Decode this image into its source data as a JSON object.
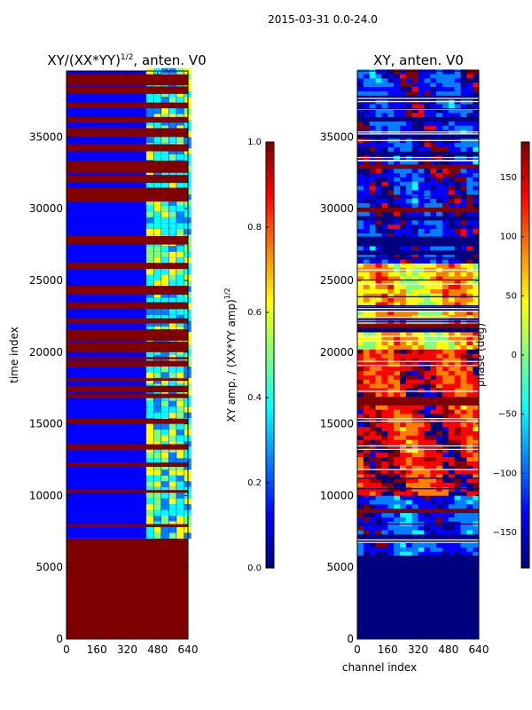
{
  "suptitle": "2015-03-31 0.0-24.0",
  "colors": {
    "saturated": "#800000",
    "background_blue": "#00008f",
    "frame": "#000000"
  },
  "colormap": [
    "#00007f",
    "#0000ff",
    "#007fff",
    "#00ffff",
    "#7fff7f",
    "#ffff00",
    "#ff7f00",
    "#ff0000",
    "#7f0000"
  ],
  "chart_data": [
    {
      "type": "heatmap",
      "title": "XY/(XX*YY)^{1/2}, anten. V0",
      "title_main": "XY/(XX*YY)",
      "title_sup": "1/2",
      "title_tail": ", anten. V0",
      "xlabel": "",
      "ylabel": "time index",
      "xlim": [
        0,
        640
      ],
      "ylim": [
        0,
        39600
      ],
      "xticks": [
        0,
        160,
        320,
        480,
        640
      ],
      "xtick_labels": [
        "0",
        "160",
        "320",
        "480",
        "640"
      ],
      "yticks": [
        0,
        5000,
        10000,
        15000,
        20000,
        25000,
        30000,
        35000
      ],
      "ytick_labels": [
        "0",
        "5000",
        "10000",
        "15000",
        "20000",
        "25000",
        "30000",
        "35000"
      ],
      "colorbar": {
        "label": "XY amp. / (XX*YY amp)^{1/2}",
        "label_main": "XY amp. / (XX*YY amp)",
        "label_sup": "1/2",
        "range": [
          0.0,
          1.0
        ],
        "ticks": [
          0.0,
          0.2,
          0.4,
          0.6,
          0.8,
          1.0
        ],
        "tick_labels": [
          "0.0",
          "0.2",
          "0.4",
          "0.6",
          "0.8",
          "1.0"
        ]
      },
      "value_bands": [
        {
          "t_start": 0,
          "t_end": 7000,
          "value": 1.0
        },
        {
          "t_start": 7000,
          "t_end": 39600,
          "value": 0.1
        }
      ],
      "saturated_rows": [
        7800,
        10200,
        12000,
        13200,
        15000,
        16800,
        17200,
        18000,
        19000,
        19500,
        20000,
        20400,
        20800,
        21200,
        22000,
        23000,
        24000,
        25800,
        27500,
        30500,
        31000,
        31800,
        32500,
        33000,
        34000,
        35000,
        36000,
        37000,
        38000,
        38600,
        39000
      ],
      "active_channels": [
        420,
        640
      ]
    },
    {
      "type": "heatmap",
      "title": "XY, anten. V0",
      "xlabel": "channel index",
      "ylabel": "",
      "xlim": [
        0,
        640
      ],
      "ylim": [
        0,
        39600
      ],
      "xticks": [
        0,
        160,
        320,
        480,
        640
      ],
      "xtick_labels": [
        "0",
        "160",
        "320",
        "480",
        "640"
      ],
      "yticks": [
        0,
        5000,
        10000,
        15000,
        20000,
        25000,
        30000,
        35000
      ],
      "ytick_labels": [
        "0",
        "5000",
        "10000",
        "15000",
        "20000",
        "25000",
        "30000",
        "35000"
      ],
      "colorbar": {
        "label": "phase (deg)",
        "range": [
          -180,
          180
        ],
        "ticks": [
          -150,
          -100,
          -50,
          0,
          50,
          100,
          150
        ],
        "tick_labels": [
          "−150",
          "−100",
          "−50",
          "0",
          "50",
          "100",
          "150"
        ]
      },
      "value_bands": [
        {
          "t_start": 0,
          "t_end": 5800,
          "value": -170
        },
        {
          "t_start": 5800,
          "t_end": 10000,
          "value": -120
        },
        {
          "t_start": 10000,
          "t_end": 20000,
          "value": 140
        },
        {
          "t_start": 20000,
          "t_end": 26000,
          "value": 60
        },
        {
          "t_start": 26000,
          "t_end": 39600,
          "value": -140
        }
      ]
    }
  ]
}
